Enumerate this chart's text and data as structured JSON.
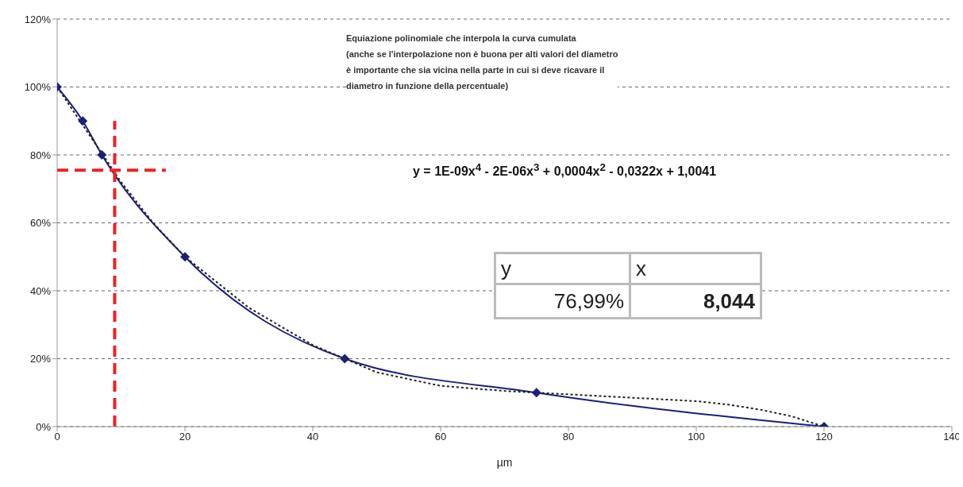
{
  "chart_data": {
    "type": "line",
    "xlabel": "µm",
    "xlim": [
      0,
      140
    ],
    "xticks": [
      0,
      20,
      40,
      60,
      80,
      100,
      120,
      140
    ],
    "ylim": [
      0,
      120
    ],
    "yticks": [
      {
        "value": 0,
        "label": "0%"
      },
      {
        "value": 20,
        "label": "20%"
      },
      {
        "value": 40,
        "label": "40%"
      },
      {
        "value": 60,
        "label": "60%"
      },
      {
        "value": 80,
        "label": "80%"
      },
      {
        "value": 100,
        "label": "100%"
      },
      {
        "value": 120,
        "label": "120%"
      }
    ],
    "grid": "y",
    "series": [
      {
        "color": "#1b1f7a",
        "marker": "diamond",
        "line_style": "solid",
        "x": [
          0,
          4,
          7,
          20,
          45,
          75,
          120
        ],
        "values": [
          100,
          90,
          80,
          50,
          20,
          10,
          0
        ]
      },
      {
        "color": "#222222",
        "marker": "none",
        "line_style": "dotted",
        "x": [
          0,
          5,
          10,
          15,
          20,
          30,
          40,
          50,
          60,
          70,
          80,
          90,
          100,
          105,
          110,
          115,
          120
        ],
        "values": [
          100,
          86,
          72,
          60,
          50,
          35,
          24,
          16,
          12,
          10.5,
          9.5,
          8.5,
          7.5,
          6.5,
          5,
          3,
          0
        ]
      },
      {
        "color": "#ee2222",
        "marker": "none",
        "line_style": "dashed",
        "x": [
          9,
          9
        ],
        "values": [
          0,
          90
        ]
      },
      {
        "color": "#ee2222",
        "marker": "none",
        "line_style": "dashed",
        "x": [
          0,
          17
        ],
        "values": [
          75.5,
          75.5
        ]
      }
    ],
    "annotations": [
      "Equiazione polinomiale che interpola la curva cumulata\n(anche se l'interpolazione non è buona per alti valori del diametro\nè importante che sia vicina nella parte in cui si deve ricavare il\ndiametro in funzione della percentuale)",
      "y = 1E-09x$^{4}$ - 2E-06x$^{3}$ + 0,0004x$^{2}$ - 0,0322x + 1,0041",
      "y",
      "x",
      "76,99%",
      "8,044"
    ]
  }
}
